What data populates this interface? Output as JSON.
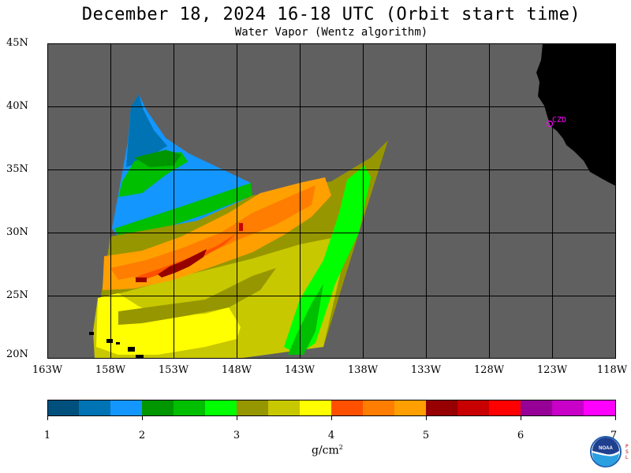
{
  "header": {
    "title": "December 18, 2024  16-18 UTC  (Orbit start time)",
    "subtitle": "Water Vapor (Wentz algorithm)"
  },
  "map": {
    "lat_labels": [
      "45N",
      "40N",
      "35N",
      "30N",
      "25N",
      "20N"
    ],
    "lon_labels": [
      "163W",
      "158W",
      "153W",
      "148W",
      "143W",
      "138W",
      "133W",
      "128W",
      "123W",
      "118W"
    ],
    "station_label": "CZD",
    "colors": {
      "no_data": "#606060",
      "land": "#000000",
      "grid": "#000000",
      "station": "#ff00ff"
    }
  },
  "colorbar": {
    "tick_labels": [
      "1",
      "2",
      "3",
      "4",
      "5",
      "6",
      "7"
    ],
    "units_main": "g/cm",
    "units_exp": "2",
    "colors": [
      "#00507d",
      "#0073b4",
      "#1496ff",
      "#009600",
      "#00be00",
      "#00ff00",
      "#969600",
      "#c8c800",
      "#ffff00",
      "#ff5000",
      "#ff7d00",
      "#ffa000",
      "#960000",
      "#c80000",
      "#ff0000",
      "#960096",
      "#c800c8",
      "#ff00ff"
    ]
  },
  "logo": {
    "label": "NOAA",
    "side_text": "PSL"
  }
}
